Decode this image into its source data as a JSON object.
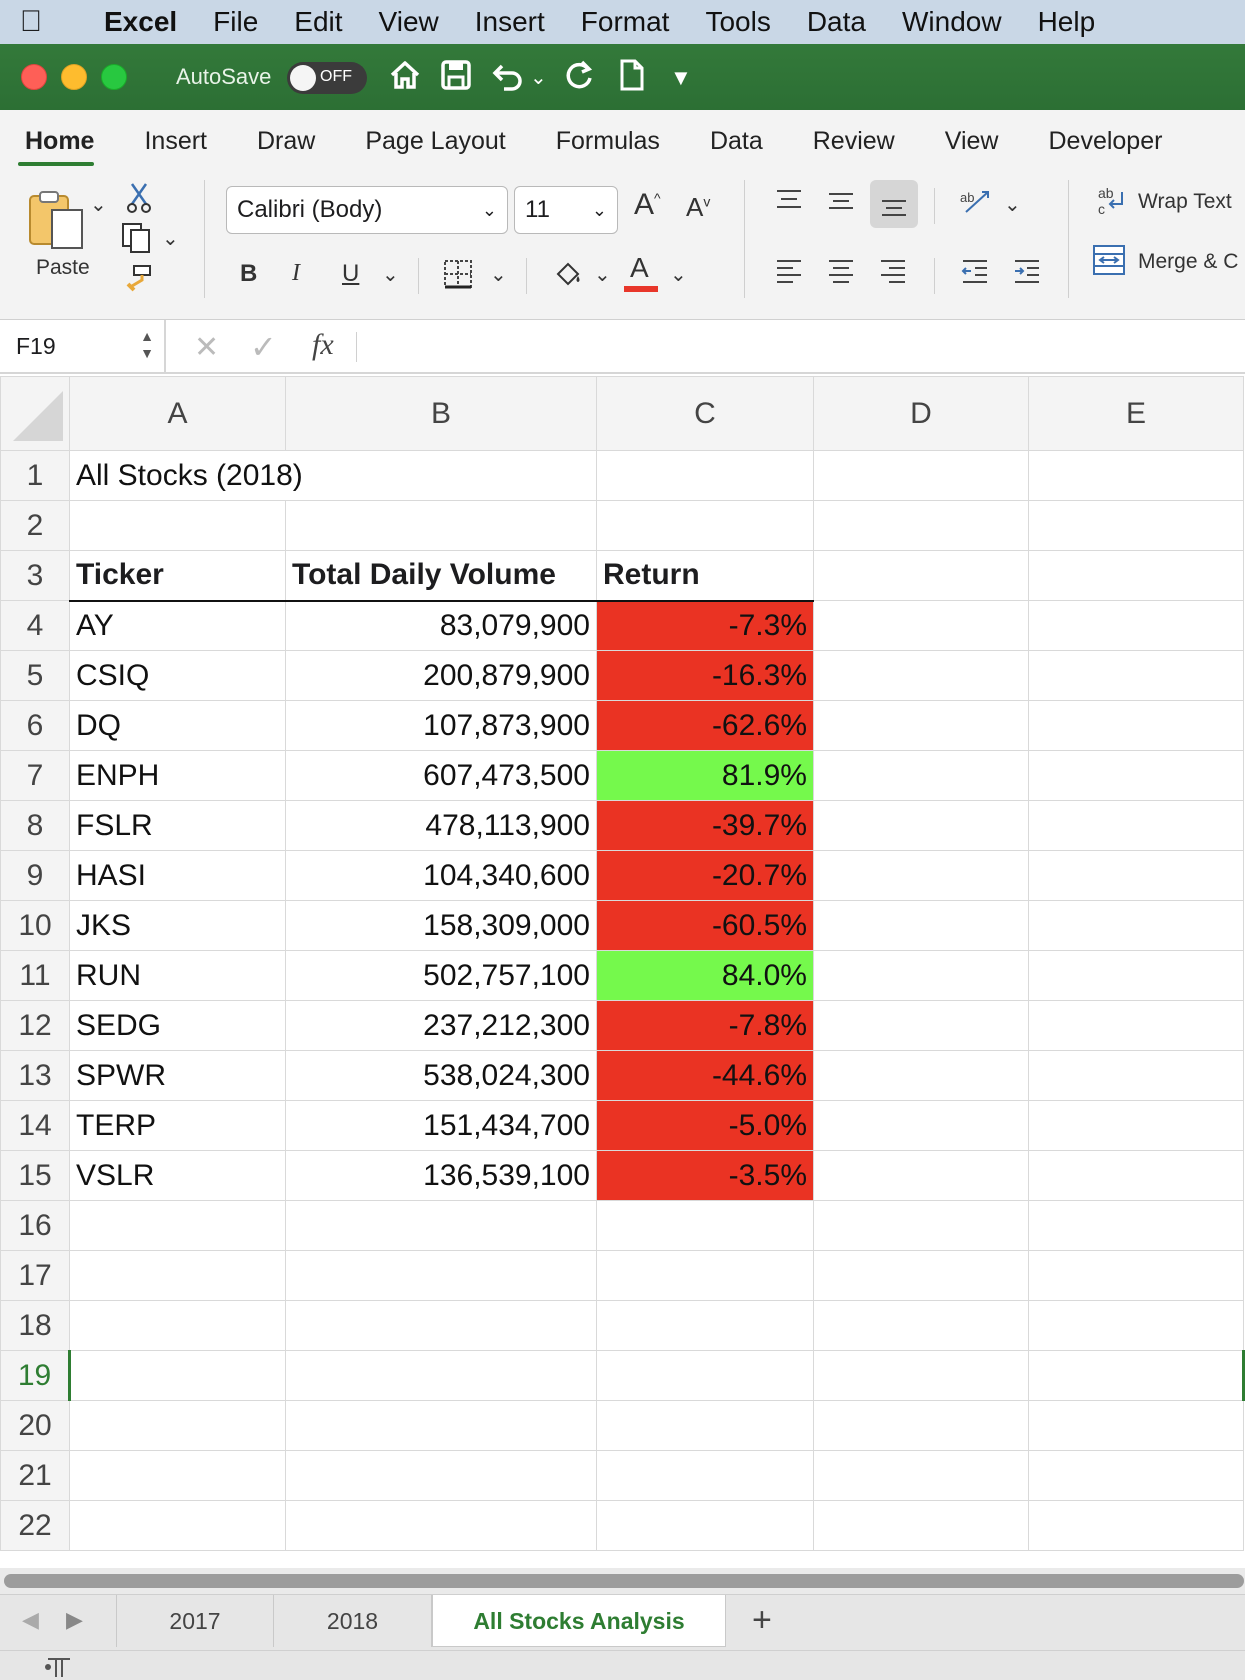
{
  "menubar": {
    "app": "Excel",
    "items": [
      "File",
      "Edit",
      "View",
      "Insert",
      "Format",
      "Tools",
      "Data",
      "Window",
      "Help"
    ]
  },
  "titlebar": {
    "autosave_label": "AutoSave",
    "autosave_state": "OFF"
  },
  "ribbon": {
    "tabs": [
      "Home",
      "Insert",
      "Draw",
      "Page Layout",
      "Formulas",
      "Data",
      "Review",
      "View",
      "Developer"
    ],
    "active_tab": "Home",
    "paste_label": "Paste",
    "font_name": "Calibri (Body)",
    "font_size": "11",
    "bold": "B",
    "italic": "I",
    "underline": "U",
    "wrap_text": "Wrap Text",
    "merge": "Merge & C",
    "font_color": "#e8362a"
  },
  "formula_bar": {
    "name_box": "F19",
    "fx": "fx",
    "content": ""
  },
  "sheet": {
    "columns": [
      "A",
      "B",
      "C",
      "D",
      "E"
    ],
    "selected_cell": "F19",
    "title": "All Stocks (2018)",
    "headers": [
      "Ticker",
      "Total Daily Volume",
      "Return"
    ],
    "rows": [
      {
        "ticker": "AY",
        "volume": "83,079,900",
        "return": "-7.3%",
        "positive": false
      },
      {
        "ticker": "CSIQ",
        "volume": "200,879,900",
        "return": "-16.3%",
        "positive": false
      },
      {
        "ticker": "DQ",
        "volume": "107,873,900",
        "return": "-62.6%",
        "positive": false
      },
      {
        "ticker": "ENPH",
        "volume": "607,473,500",
        "return": "81.9%",
        "positive": true
      },
      {
        "ticker": "FSLR",
        "volume": "478,113,900",
        "return": "-39.7%",
        "positive": false
      },
      {
        "ticker": "HASI",
        "volume": "104,340,600",
        "return": "-20.7%",
        "positive": false
      },
      {
        "ticker": "JKS",
        "volume": "158,309,000",
        "return": "-60.5%",
        "positive": false
      },
      {
        "ticker": "RUN",
        "volume": "502,757,100",
        "return": "84.0%",
        "positive": true
      },
      {
        "ticker": "SEDG",
        "volume": "237,212,300",
        "return": "-7.8%",
        "positive": false
      },
      {
        "ticker": "SPWR",
        "volume": "538,024,300",
        "return": "-44.6%",
        "positive": false
      },
      {
        "ticker": "TERP",
        "volume": "151,434,700",
        "return": "-5.0%",
        "positive": false
      },
      {
        "ticker": "VSLR",
        "volume": "136,539,100",
        "return": "-3.5%",
        "positive": false
      }
    ],
    "row_numbers": [
      "1",
      "2",
      "3",
      "4",
      "5",
      "6",
      "7",
      "8",
      "9",
      "10",
      "11",
      "12",
      "13",
      "14",
      "15",
      "16",
      "17",
      "18",
      "19",
      "20",
      "21",
      "22"
    ],
    "colors": {
      "negative": "#ea3323",
      "positive": "#75f94c",
      "accent": "#2e7d32"
    }
  },
  "sheet_tabs": {
    "tabs": [
      "2017",
      "2018",
      "All Stocks Analysis"
    ],
    "active": "All Stocks Analysis",
    "add": "+"
  }
}
